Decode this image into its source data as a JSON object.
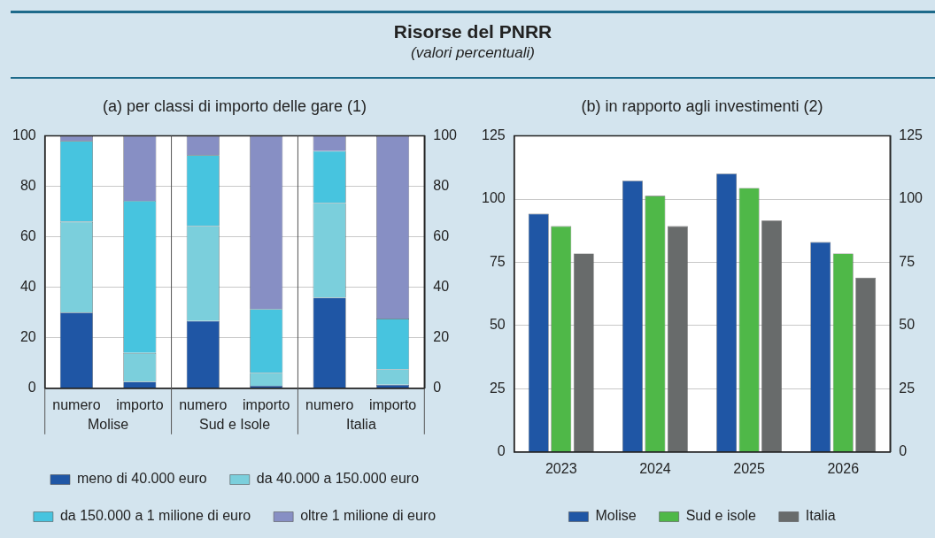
{
  "chart_data": [
    {
      "type": "bar",
      "title": "Risorse del PNRR",
      "subtitle": "(valori percentuali)",
      "stacked": true,
      "categories": [
        "numero",
        "importo",
        "numero",
        "importo",
        "numero",
        "importo"
      ],
      "annotations": [
        "(a) per classi di importo delle gare (1)",
        "Molise",
        "Sud e Isole",
        "Italia"
      ],
      "series": [
        {
          "name": "meno di 40.000 euro",
          "color": "#1f56a5",
          "values": [
            30,
            2.6,
            26.7,
            1.0,
            35.9,
            1.4
          ]
        },
        {
          "name": "da 40.000 a 150.000 euro",
          "color": "#7bcfdc",
          "values": [
            36,
            11.4,
            37.6,
            5.1,
            37.5,
            6.1
          ]
        },
        {
          "name": "da 150.000 a 1 milione di euro",
          "color": "#47c4df",
          "values": [
            32,
            60.3,
            28.1,
            25.3,
            20.6,
            20.1
          ]
        },
        {
          "name": "oltre 1 milione di euro",
          "color": "#878fc4",
          "values": [
            2,
            25.7,
            7.6,
            68.6,
            6.0,
            72.4
          ]
        }
      ],
      "ylim": [
        0,
        100
      ],
      "yticks": [
        0,
        20,
        40,
        60,
        80,
        100
      ],
      "y2lim": [
        0,
        100
      ],
      "y2ticks": [
        0,
        20,
        40,
        60,
        80,
        100
      ],
      "grid": "y",
      "legend": "bottom"
    },
    {
      "type": "bar",
      "title": "(b) in rapporto agli investimenti (2)",
      "categories": [
        "2023",
        "2024",
        "2025",
        "2026"
      ],
      "series": [
        {
          "name": "Molise",
          "color": "#1f56a5",
          "values": [
            94.2,
            107.3,
            110.1,
            83.0
          ]
        },
        {
          "name": "Sud e isole",
          "color": "#4fb848",
          "values": [
            89.3,
            101.3,
            104.4,
            78.5
          ]
        },
        {
          "name": "Italia",
          "color": "#686b6b",
          "values": [
            78.5,
            89.3,
            91.5,
            69.0
          ]
        }
      ],
      "ylim": [
        0,
        125
      ],
      "yticks": [
        0,
        25,
        50,
        75,
        100,
        125
      ],
      "y2lim": [
        0,
        125
      ],
      "y2ticks": [
        0,
        25,
        50,
        75,
        100,
        125
      ],
      "grid": "y",
      "legend": "bottom"
    }
  ]
}
